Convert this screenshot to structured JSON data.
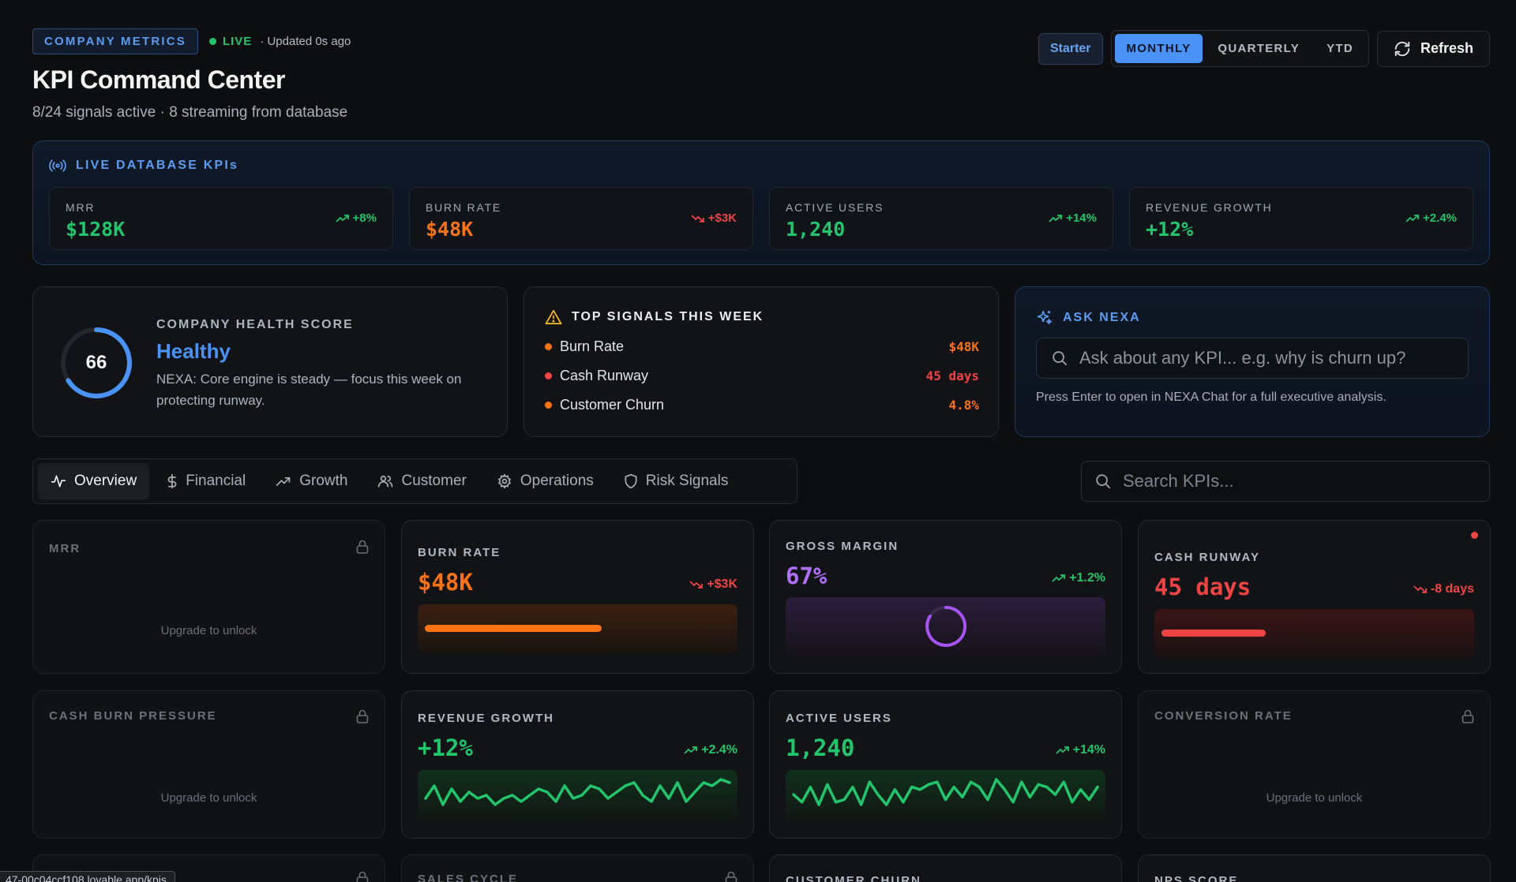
{
  "header": {
    "company_badge": "COMPANY METRICS",
    "live_label": "LIVE",
    "updated": "· Updated 0s ago",
    "title": "KPI Command Center",
    "subtitle": "8/24 signals active · 8 streaming from database",
    "plan": "Starter",
    "periods": [
      "MONTHLY",
      "QUARTERLY",
      "YTD"
    ],
    "active_period": "MONTHLY",
    "refresh_label": "Refresh"
  },
  "live_panel": {
    "title": "LIVE DATABASE KPIs",
    "kpis": [
      {
        "label": "MRR",
        "value": "$128K",
        "delta": "+8%",
        "trend": "up"
      },
      {
        "label": "BURN RATE",
        "value": "$48K",
        "delta": "+$3K",
        "trend": "down"
      },
      {
        "label": "ACTIVE USERS",
        "value": "1,240",
        "delta": "+14%",
        "trend": "up"
      },
      {
        "label": "REVENUE GROWTH",
        "value": "+12%",
        "delta": "+2.4%",
        "trend": "up"
      }
    ]
  },
  "health": {
    "label": "COMPANY HEALTH SCORE",
    "score": "66",
    "score_value": 66,
    "status": "Healthy",
    "description": "NEXA: Core engine is steady — focus this week on protecting runway."
  },
  "signals": {
    "title": "TOP SIGNALS THIS WEEK",
    "items": [
      {
        "name": "Burn Rate",
        "value": "$48K",
        "color": "#f97316"
      },
      {
        "name": "Cash Runway",
        "value": "45 days",
        "color": "#ef4444"
      },
      {
        "name": "Customer Churn",
        "value": "4.8%",
        "color": "#f97316"
      }
    ]
  },
  "ask": {
    "title": "ASK NEXA",
    "placeholder": "Ask about any KPI...  e.g. why is churn up?",
    "hint": "Press Enter to open in NEXA Chat for a full executive analysis."
  },
  "tabs": [
    {
      "label": "Overview",
      "icon": "activity-icon"
    },
    {
      "label": "Financial",
      "icon": "dollar-icon"
    },
    {
      "label": "Growth",
      "icon": "trend-up-icon"
    },
    {
      "label": "Customer",
      "icon": "users-icon"
    },
    {
      "label": "Operations",
      "icon": "gear-icon"
    },
    {
      "label": "Risk Signals",
      "icon": "shield-icon"
    }
  ],
  "search": {
    "placeholder": "Search KPIs..."
  },
  "kpi_cards": {
    "mrr": {
      "label": "MRR",
      "unlock": "Upgrade to unlock"
    },
    "burn_rate": {
      "label": "BURN RATE",
      "value": "$48K",
      "delta": "+$3K",
      "progress": 0.58
    },
    "gross_margin": {
      "label": "GROSS MARGIN",
      "value": "67%",
      "delta": "+1.2%"
    },
    "cash_runway": {
      "label": "CASH RUNWAY",
      "value": "45 days",
      "delta": "-8 days",
      "progress": 0.34
    },
    "cash_burn_pressure": {
      "label": "CASH BURN PRESSURE",
      "unlock": "Upgrade to unlock"
    },
    "revenue_growth": {
      "label": "REVENUE GROWTH",
      "value": "+12%",
      "delta": "+2.4%",
      "sparkline": [
        4,
        8,
        2,
        7,
        3,
        6,
        4,
        5,
        2,
        4,
        5,
        3,
        5,
        7,
        6,
        3,
        8,
        4,
        5,
        8,
        7,
        4,
        6,
        8,
        9,
        5,
        3,
        8,
        4,
        9,
        3,
        6,
        9,
        8,
        10,
        9
      ]
    },
    "active_users": {
      "label": "ACTIVE USERS",
      "value": "1,240",
      "delta": "+14%",
      "sparkline": [
        6,
        3,
        9,
        2,
        10,
        3,
        4,
        9,
        2,
        11,
        6,
        2,
        8,
        3,
        9,
        8,
        10,
        11,
        4,
        9,
        5,
        11,
        9,
        4,
        12,
        8,
        3,
        11,
        5,
        10,
        9,
        6,
        11,
        3,
        8,
        4,
        9
      ]
    },
    "conversion_rate": {
      "label": "CONVERSION RATE",
      "unlock": "Upgrade to unlock"
    },
    "sales_cycle": {
      "label": "SALES CYCLE"
    },
    "customer_churn": {
      "label": "CUSTOMER CHURN"
    },
    "nps_score": {
      "label": "NPS SCORE"
    }
  },
  "status_url": "47-00c04ccf108.lovable.app/kpis",
  "colors": {
    "accent": "#4a92f5",
    "green": "#22c56b",
    "orange": "#f97316",
    "red": "#ef4444",
    "purple": "#a855f7"
  }
}
